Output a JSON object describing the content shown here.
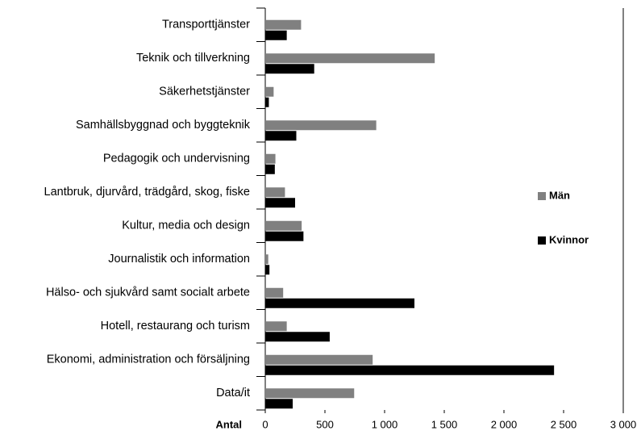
{
  "chart_data": {
    "type": "bar",
    "orientation": "horizontal",
    "categories": [
      "Transporttjänster",
      "Teknik och tillverkning",
      "Säkerhetstjänster",
      "Samhällsbyggnad och byggteknik",
      "Pedagogik och undervisning",
      "Lantbruk, djurvård, trädgård, skog, fiske",
      "Kultur, media och design",
      "Journalistik och information",
      "Hälso- och sjukvård samt socialt arbete",
      "Hotell, restaurang och turism",
      "Ekonomi, administration och försäljning",
      "Data/it"
    ],
    "series": [
      {
        "name": "Män",
        "color": "#808080",
        "values": [
          300,
          1420,
          70,
          930,
          85,
          165,
          305,
          25,
          150,
          180,
          900,
          745
        ]
      },
      {
        "name": "Kvinnor",
        "color": "#000000",
        "values": [
          180,
          410,
          30,
          260,
          80,
          250,
          320,
          35,
          1250,
          540,
          2420,
          230
        ]
      }
    ],
    "xlabel": "Antal",
    "xlim": [
      0,
      3000
    ],
    "xticks": [
      0,
      500,
      {
        "value": 1000,
        "label": "1 000"
      },
      {
        "value": 1500,
        "label": "1 500"
      },
      {
        "value": 2000,
        "label": "2 000"
      },
      {
        "value": 2500,
        "label": "2 500"
      },
      {
        "value": 3000,
        "label": "3 000"
      }
    ],
    "legend": "right"
  }
}
